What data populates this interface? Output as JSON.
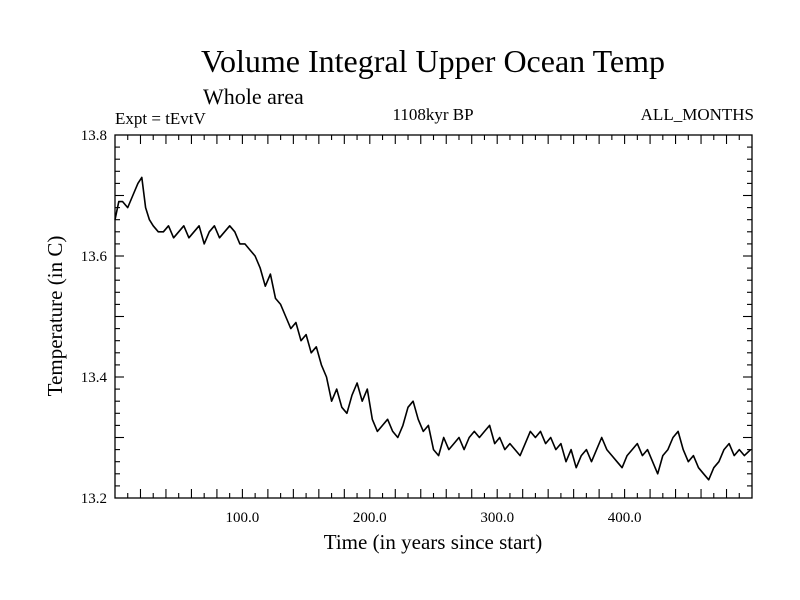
{
  "chart_data": {
    "type": "line",
    "title": "Volume Integral Upper Ocean Temp",
    "subtitle": "Whole area",
    "experiment": "Expt = tEvtV",
    "period": "1108kyr BP",
    "months": "ALL_MONTHS",
    "xlabel": "Time (in years since start)",
    "ylabel": "Temperature (in C)",
    "xlim": [
      0,
      500
    ],
    "ylim": [
      13.2,
      13.8
    ],
    "x_ticks": [
      100,
      200,
      300,
      400
    ],
    "x_tick_labels": [
      "100.0",
      "200.0",
      "300.0",
      "400.0"
    ],
    "y_ticks": [
      13.2,
      13.4,
      13.6,
      13.8
    ],
    "y_tick_labels": [
      "13.2",
      "13.4",
      "13.6",
      "13.8"
    ],
    "grid": false,
    "series": [
      {
        "name": "Temperature",
        "x": [
          0,
          3,
          6,
          10,
          14,
          18,
          21,
          24,
          27,
          30,
          34,
          38,
          42,
          46,
          50,
          54,
          58,
          62,
          66,
          70,
          74,
          78,
          82,
          86,
          90,
          94,
          98,
          102,
          106,
          110,
          114,
          118,
          122,
          126,
          130,
          134,
          138,
          142,
          146,
          150,
          154,
          158,
          162,
          166,
          170,
          174,
          178,
          182,
          186,
          190,
          194,
          198,
          202,
          206,
          210,
          214,
          218,
          222,
          226,
          230,
          234,
          238,
          242,
          246,
          250,
          254,
          258,
          262,
          266,
          270,
          274,
          278,
          282,
          286,
          290,
          294,
          298,
          302,
          306,
          310,
          314,
          318,
          322,
          326,
          330,
          334,
          338,
          342,
          346,
          350,
          354,
          358,
          362,
          366,
          370,
          374,
          378,
          382,
          386,
          390,
          394,
          398,
          402,
          406,
          410,
          414,
          418,
          422,
          426,
          430,
          434,
          438,
          442,
          446,
          450,
          454,
          458,
          462,
          466,
          470,
          474,
          478,
          482,
          486,
          490,
          494,
          499
        ],
        "values": [
          13.66,
          13.69,
          13.69,
          13.68,
          13.7,
          13.72,
          13.73,
          13.68,
          13.66,
          13.65,
          13.64,
          13.64,
          13.65,
          13.63,
          13.64,
          13.65,
          13.63,
          13.64,
          13.65,
          13.62,
          13.64,
          13.65,
          13.63,
          13.64,
          13.65,
          13.64,
          13.62,
          13.62,
          13.61,
          13.6,
          13.58,
          13.55,
          13.57,
          13.53,
          13.52,
          13.5,
          13.48,
          13.49,
          13.46,
          13.47,
          13.44,
          13.45,
          13.42,
          13.4,
          13.36,
          13.38,
          13.35,
          13.34,
          13.37,
          13.39,
          13.36,
          13.38,
          13.33,
          13.31,
          13.32,
          13.33,
          13.31,
          13.3,
          13.32,
          13.35,
          13.36,
          13.33,
          13.31,
          13.32,
          13.28,
          13.27,
          13.3,
          13.28,
          13.29,
          13.3,
          13.28,
          13.3,
          13.31,
          13.3,
          13.31,
          13.32,
          13.29,
          13.3,
          13.28,
          13.29,
          13.28,
          13.27,
          13.29,
          13.31,
          13.3,
          13.31,
          13.29,
          13.3,
          13.28,
          13.29,
          13.26,
          13.28,
          13.25,
          13.27,
          13.28,
          13.26,
          13.28,
          13.3,
          13.28,
          13.27,
          13.26,
          13.25,
          13.27,
          13.28,
          13.29,
          13.27,
          13.28,
          13.26,
          13.24,
          13.27,
          13.28,
          13.3,
          13.31,
          13.28,
          13.26,
          13.27,
          13.25,
          13.24,
          13.23,
          13.25,
          13.26,
          13.28,
          13.29,
          13.27,
          13.28,
          13.27,
          13.28
        ]
      }
    ]
  }
}
